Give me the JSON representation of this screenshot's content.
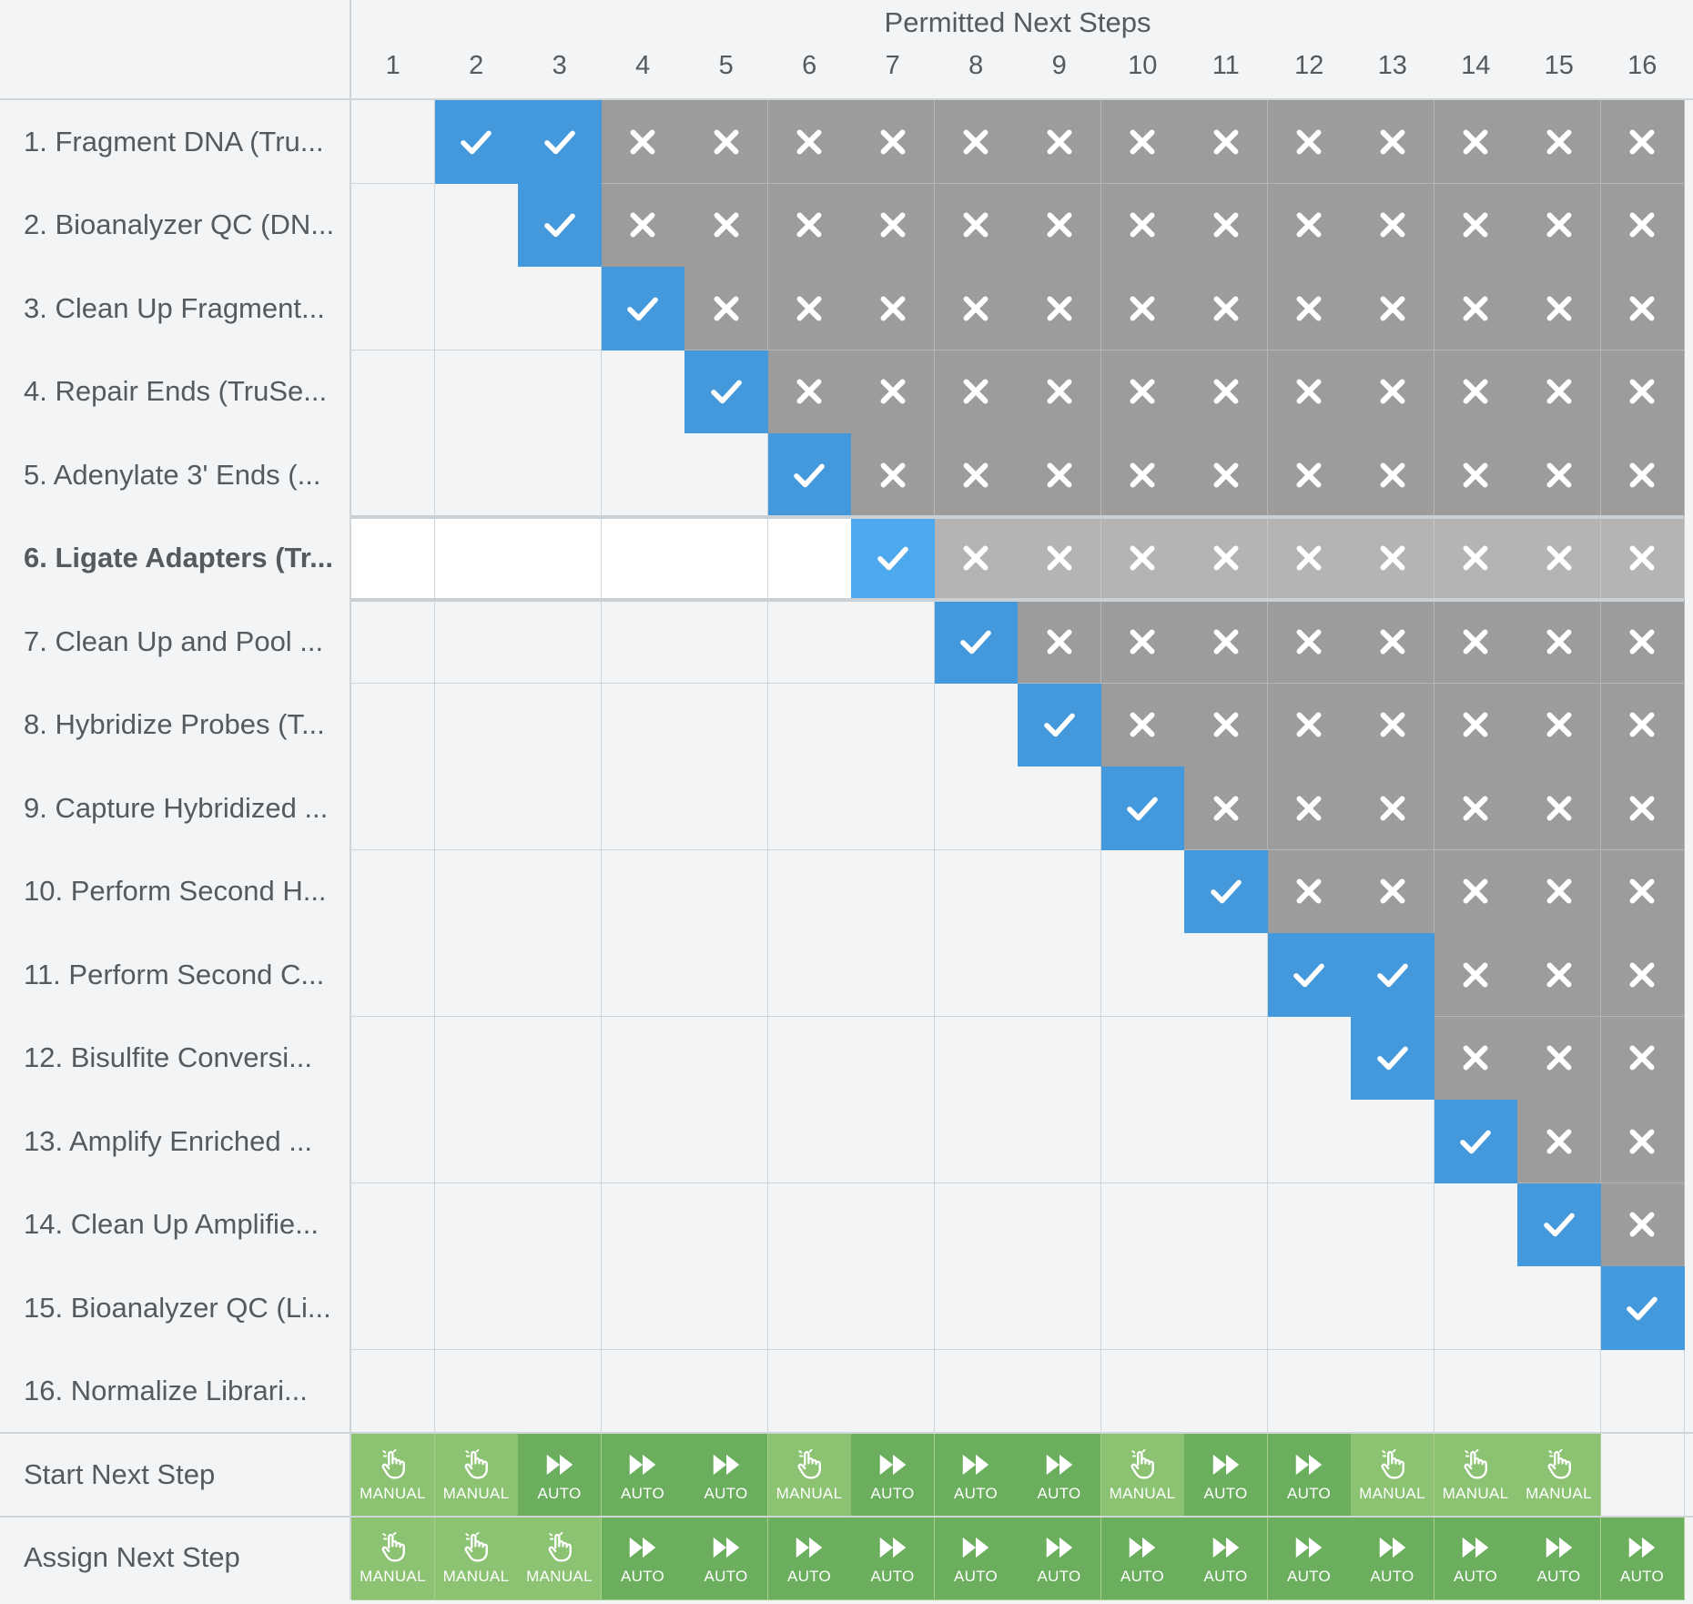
{
  "header": {
    "title": "Permitted Next Steps"
  },
  "columns": [
    "1",
    "2",
    "3",
    "4",
    "5",
    "6",
    "7",
    "8",
    "9",
    "10",
    "11",
    "12",
    "13",
    "14",
    "15",
    "16"
  ],
  "rows": [
    {
      "label": "1. Fragment DNA (Tru...",
      "permitted": [
        2,
        3
      ]
    },
    {
      "label": "2. Bioanalyzer QC (DN...",
      "permitted": [
        3
      ]
    },
    {
      "label": "3. Clean Up Fragment...",
      "permitted": [
        4
      ]
    },
    {
      "label": "4. Repair Ends (TruSe...",
      "permitted": [
        5
      ]
    },
    {
      "label": "5. Adenylate 3' Ends (...",
      "permitted": [
        6
      ]
    },
    {
      "label": "6. Ligate Adapters (Tr...",
      "permitted": [
        7
      ]
    },
    {
      "label": "7. Clean Up and Pool ...",
      "permitted": [
        8
      ]
    },
    {
      "label": "8. Hybridize Probes (T...",
      "permitted": [
        9
      ]
    },
    {
      "label": "9. Capture Hybridized ...",
      "permitted": [
        10
      ]
    },
    {
      "label": "10. Perform Second H...",
      "permitted": [
        11
      ]
    },
    {
      "label": "11. Perform Second C...",
      "permitted": [
        12,
        13
      ]
    },
    {
      "label": "12. Bisulfite Conversi...",
      "permitted": [
        13
      ]
    },
    {
      "label": "13. Amplify Enriched ...",
      "permitted": [
        14
      ]
    },
    {
      "label": "14. Clean Up Amplifie...",
      "permitted": [
        15
      ]
    },
    {
      "label": "15. Bioanalyzer QC (Li...",
      "permitted": [
        16
      ]
    },
    {
      "label": "16. Normalize Librari...",
      "permitted": []
    }
  ],
  "highlighted_row": 6,
  "start_next_step": {
    "label": "Start Next Step",
    "values": [
      "MANUAL",
      "MANUAL",
      "AUTO",
      "AUTO",
      "AUTO",
      "MANUAL",
      "AUTO",
      "AUTO",
      "AUTO",
      "MANUAL",
      "AUTO",
      "AUTO",
      "MANUAL",
      "MANUAL",
      "MANUAL",
      ""
    ]
  },
  "assign_next_step": {
    "label": "Assign Next Step",
    "values": [
      "MANUAL",
      "MANUAL",
      "MANUAL",
      "AUTO",
      "AUTO",
      "AUTO",
      "AUTO",
      "AUTO",
      "AUTO",
      "AUTO",
      "AUTO",
      "AUTO",
      "AUTO",
      "AUTO",
      "AUTO",
      "AUTO"
    ]
  },
  "icons": {
    "permitted": "check-icon",
    "not_permitted": "x-icon",
    "manual": "hand-pointer-icon",
    "auto": "fast-forward-icon"
  },
  "colors": {
    "permitted": "#4399dc",
    "not_permitted": "#9c9c9c",
    "manual": "#8cc373",
    "auto": "#6aae5e"
  }
}
